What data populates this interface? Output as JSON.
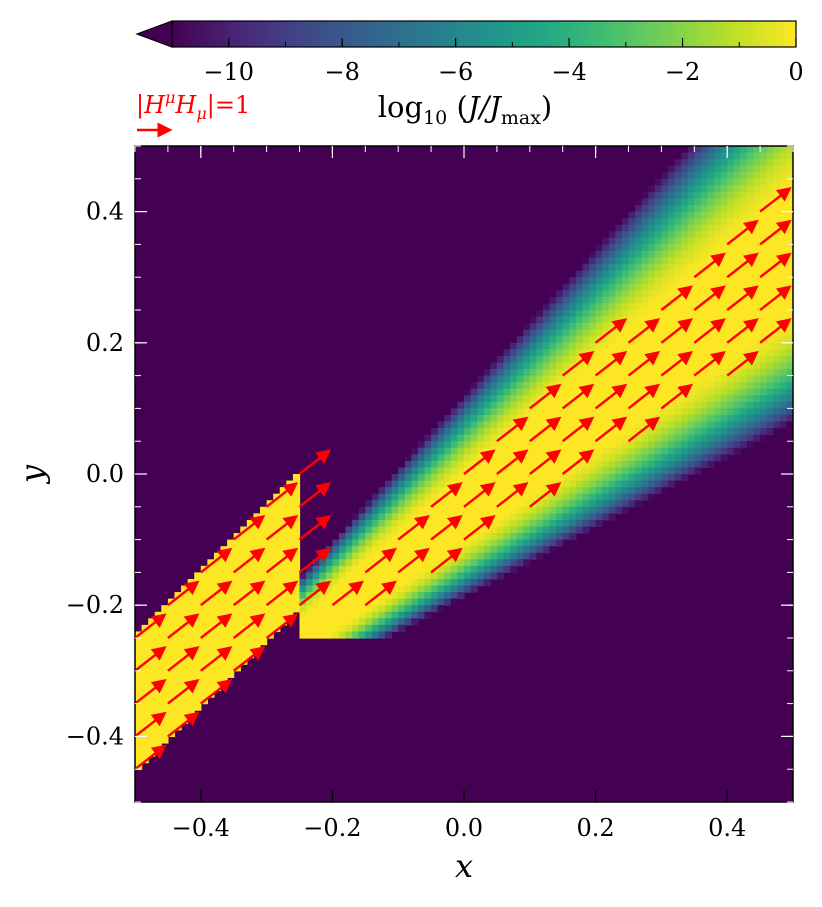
{
  "chart_data": {
    "type": "heatmap",
    "title": "",
    "xlabel": "x",
    "ylabel": "y",
    "xlim": [
      -0.5,
      0.5
    ],
    "ylim": [
      -0.5,
      0.5
    ],
    "x_ticks": [
      -0.4,
      -0.2,
      0.0,
      0.2,
      0.4
    ],
    "x_tick_labels": [
      "−0.4",
      "−0.2",
      "0.0",
      "0.2",
      "0.4"
    ],
    "y_ticks": [
      -0.4,
      -0.2,
      0.0,
      0.2,
      0.4
    ],
    "y_tick_labels": [
      "−0.4",
      "−0.2",
      "0.0",
      "0.2",
      "0.4"
    ],
    "colorbar": {
      "label": "log10 (J/Jmax)",
      "label_parts": {
        "base": "log",
        "sub": "10",
        "open": " (",
        "num": "J/J",
        "num_sub": "max",
        "close": ")"
      },
      "range": [
        -11,
        0
      ],
      "ticks": [
        -10,
        -8,
        -6,
        -4,
        -2,
        0
      ],
      "tick_labels": [
        "−10",
        "−8",
        "−6",
        "−4",
        "−2",
        "0"
      ],
      "colormap": "viridis",
      "extend": "min",
      "placement": "top"
    },
    "quiver_key": {
      "label": "|HμHμ|=1",
      "label_parts": {
        "a": "|H",
        "sup": "μ",
        "b": "H",
        "sub": "μ",
        "c": "|=1"
      },
      "magnitude": 1,
      "color": "#ff0000"
    },
    "field": {
      "description_free": true,
      "beam_direction_deg": 38,
      "lower_jet": {
        "x_range": [
          -0.5,
          -0.1
        ],
        "half_width": 0.1,
        "value": 0
      },
      "upper_jet_origin": [
        -0.25,
        -0.25
      ],
      "upper_jet_spread": 0.17
    },
    "vectors": {
      "color": "#ff0000",
      "direction_deg": 38,
      "grid_x_start": -0.5,
      "grid_step": 0.05,
      "length_units": 0.05
    }
  }
}
